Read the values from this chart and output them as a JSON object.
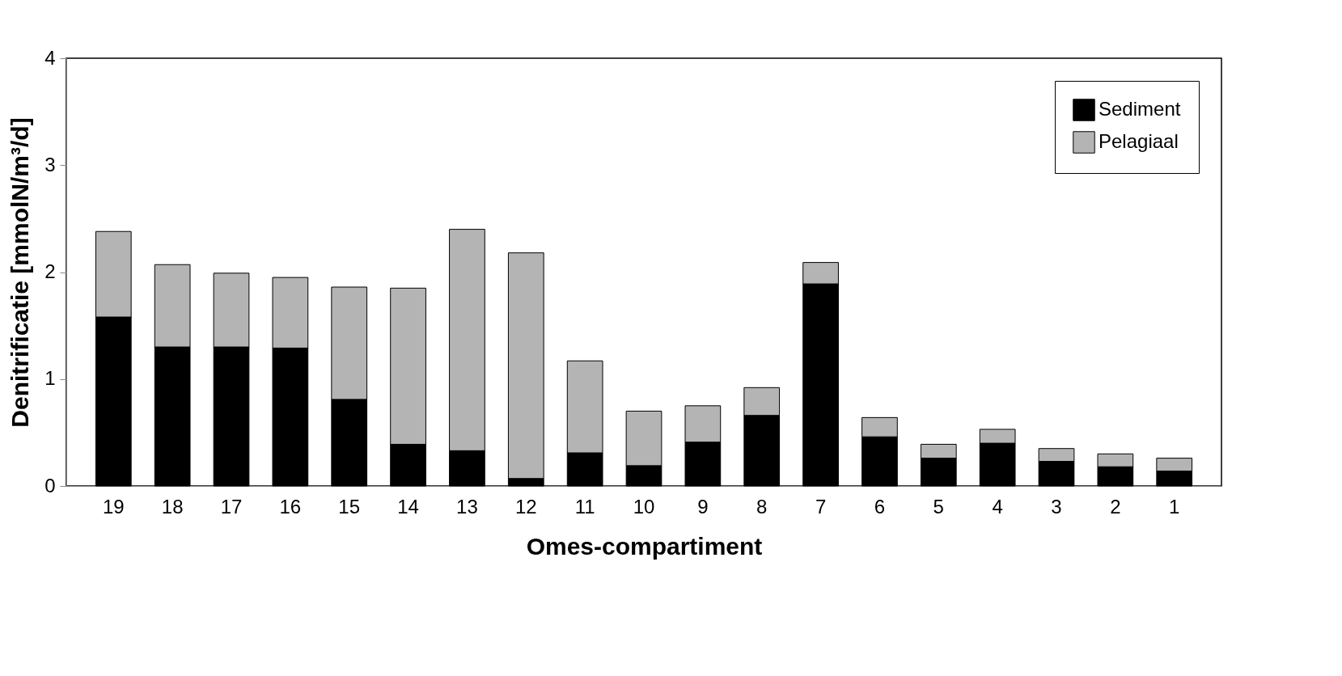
{
  "chart_data": {
    "type": "bar",
    "stacked": true,
    "xlabel": "Omes-compartiment",
    "ylabel": "Denitrificatie [mmolN/m³/d]",
    "categories": [
      "19",
      "18",
      "17",
      "16",
      "15",
      "14",
      "13",
      "12",
      "11",
      "10",
      "9",
      "8",
      "7",
      "6",
      "5",
      "4",
      "3",
      "2",
      "1"
    ],
    "series": [
      {
        "name": "Sediment",
        "color": "#000000",
        "values": [
          1.58,
          1.3,
          1.3,
          1.29,
          0.81,
          0.39,
          0.33,
          0.07,
          0.31,
          0.19,
          0.41,
          0.66,
          1.89,
          0.46,
          0.26,
          0.4,
          0.23,
          0.18,
          0.14
        ]
      },
      {
        "name": "Pelagiaal",
        "color": "#b4b4b4",
        "values": [
          0.8,
          0.77,
          0.69,
          0.66,
          1.05,
          1.46,
          2.07,
          2.11,
          0.86,
          0.51,
          0.34,
          0.26,
          0.2,
          0.18,
          0.13,
          0.13,
          0.12,
          0.12,
          0.12
        ]
      }
    ],
    "ylim": [
      0,
      4
    ],
    "yticks": [
      0,
      1,
      2,
      3,
      4
    ],
    "grid": false,
    "legend": "top right"
  }
}
